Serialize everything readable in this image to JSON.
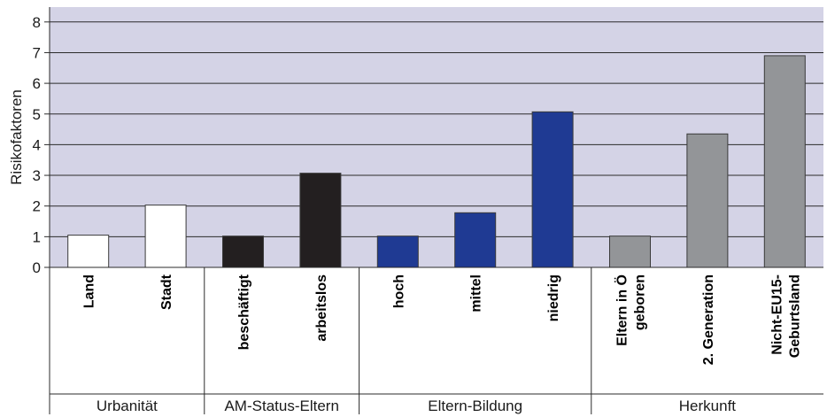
{
  "chart_data": {
    "type": "bar",
    "ylabel": "Risikofaktoren",
    "ylim": [
      0,
      8.5
    ],
    "yticks": [
      "0",
      "1",
      "2",
      "3",
      "4",
      "5",
      "6",
      "7",
      "8"
    ],
    "grid": true,
    "plot_background": "#d4d3e6",
    "categories": [
      {
        "label": [
          "Land"
        ],
        "value": 1.05,
        "group": 0
      },
      {
        "label": [
          "Stadt"
        ],
        "value": 2.03,
        "group": 0
      },
      {
        "label": [
          "beschäftigt"
        ],
        "value": 1.02,
        "group": 1
      },
      {
        "label": [
          "arbeitslos"
        ],
        "value": 3.07,
        "group": 1
      },
      {
        "label": [
          "hoch"
        ],
        "value": 1.02,
        "group": 2
      },
      {
        "label": [
          "mittel"
        ],
        "value": 1.78,
        "group": 2
      },
      {
        "label": [
          "niedrig"
        ],
        "value": 5.07,
        "group": 2
      },
      {
        "label": [
          "Eltern in Ö",
          "geboren"
        ],
        "value": 1.02,
        "group": 3
      },
      {
        "label": [
          "2. Generation"
        ],
        "value": 4.35,
        "group": 3
      },
      {
        "label": [
          "Nicht-EU15-",
          "Geburtsland"
        ],
        "value": 6.9,
        "group": 3
      }
    ],
    "groups": [
      {
        "name": "Urbanität",
        "color": "#ffffff"
      },
      {
        "name": "AM-Status-Eltern",
        "color": "#231f20"
      },
      {
        "name": "Eltern-Bildung",
        "color": "#1f3a93"
      },
      {
        "name": "Herkunft",
        "color": "#939598"
      }
    ]
  }
}
